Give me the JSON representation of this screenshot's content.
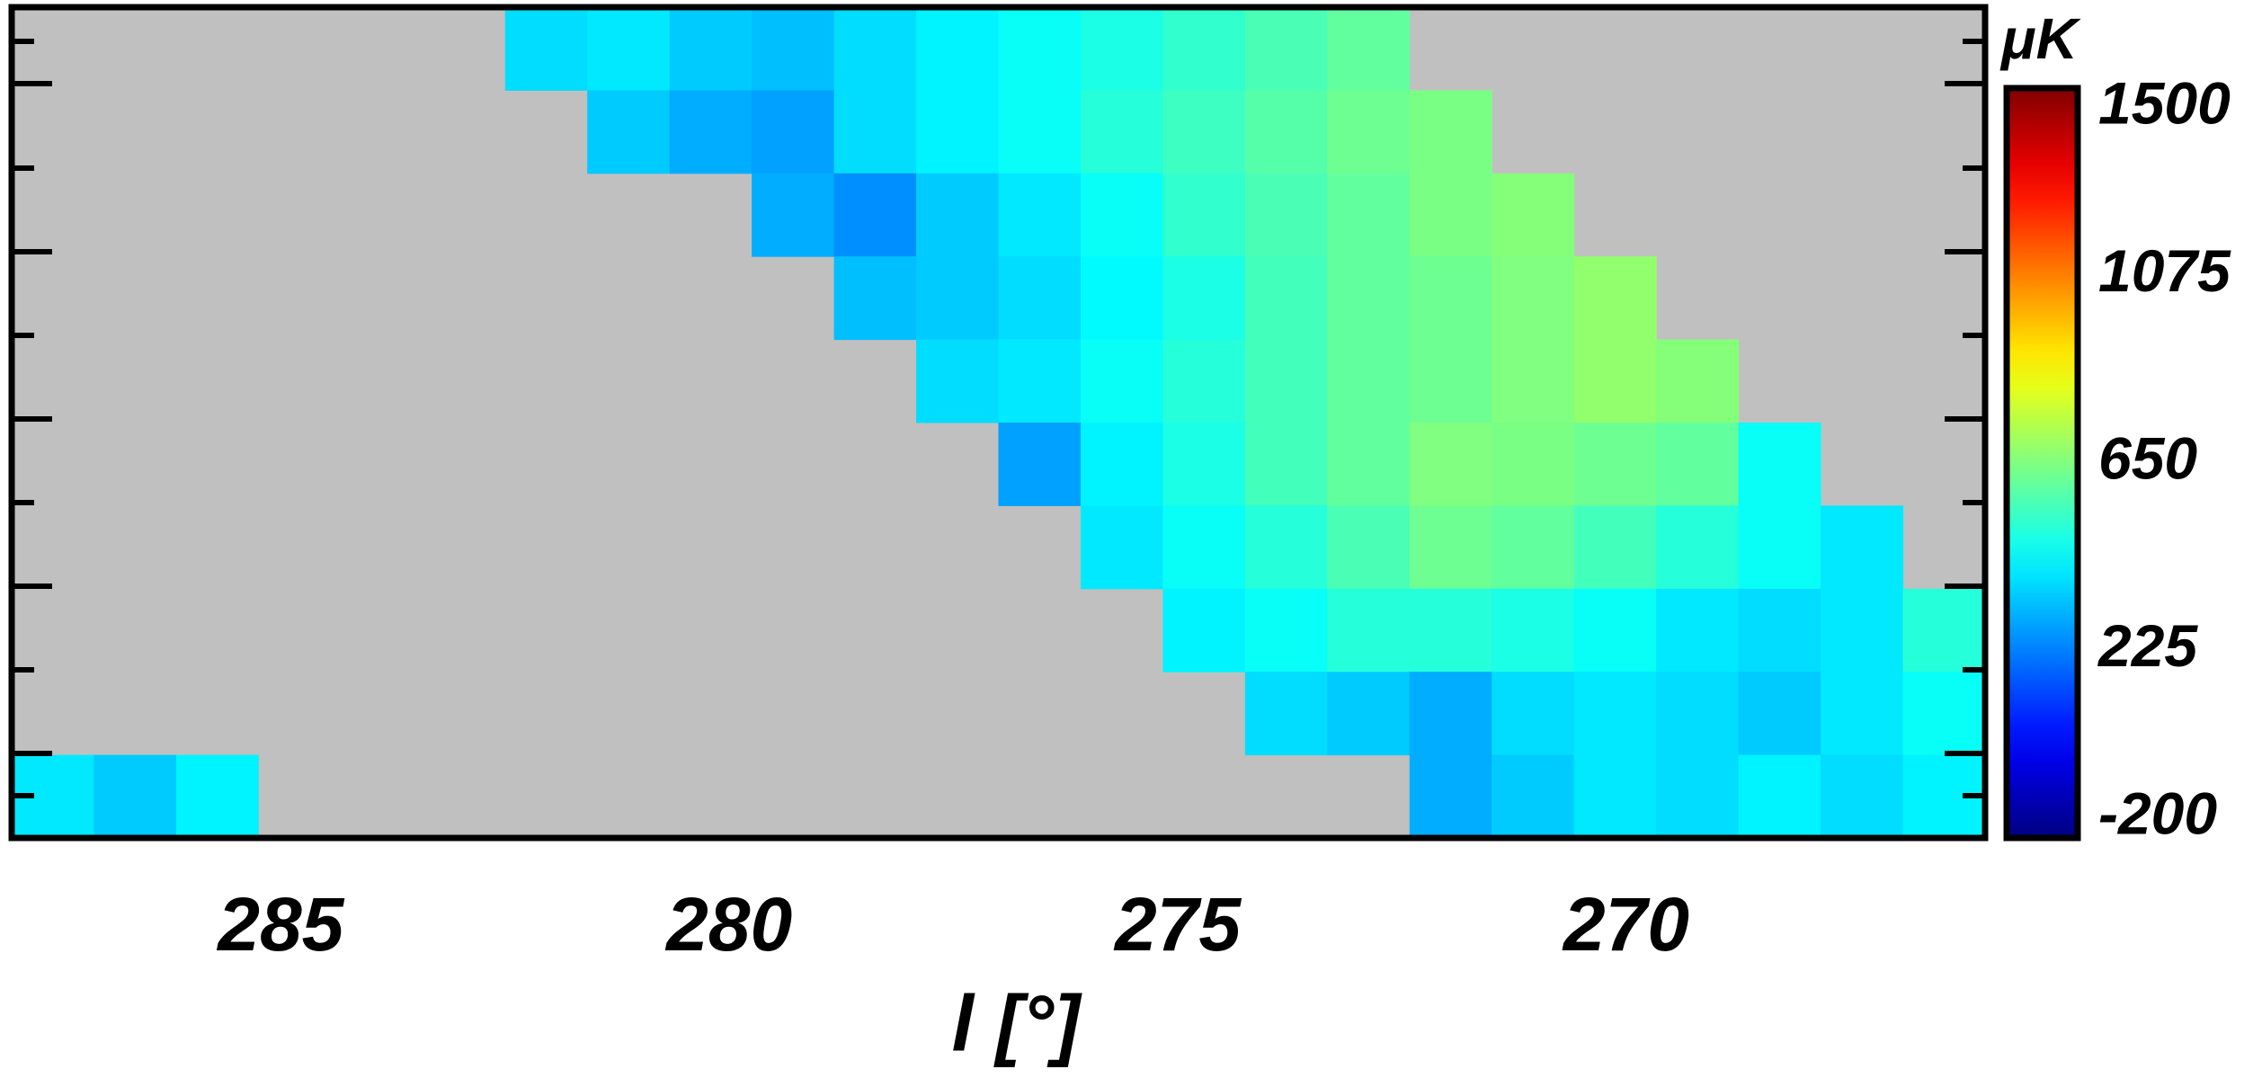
{
  "chart_data": {
    "type": "heatmap",
    "xlabel": "l [°]",
    "xlim": [
      288,
      266
    ],
    "xticks": [
      285,
      280,
      275,
      270
    ],
    "colormap": "jet",
    "mask_color": "#c0c0c0",
    "z": [
      [
        null,
        null,
        null,
        null,
        null,
        null,
        380,
        400,
        350,
        330,
        380,
        420,
        450,
        480,
        520,
        560,
        600,
        null,
        null,
        null,
        null,
        null,
        null,
        null
      ],
      [
        null,
        null,
        null,
        null,
        null,
        null,
        null,
        350,
        300,
        280,
        380,
        420,
        450,
        500,
        540,
        580,
        620,
        640,
        null,
        null,
        null,
        null,
        null,
        null
      ],
      [
        null,
        null,
        null,
        null,
        null,
        null,
        null,
        null,
        null,
        300,
        250,
        350,
        400,
        450,
        520,
        560,
        600,
        640,
        660,
        null,
        null,
        null,
        null,
        null
      ],
      [
        null,
        null,
        null,
        null,
        null,
        null,
        null,
        null,
        null,
        null,
        330,
        350,
        380,
        430,
        480,
        550,
        600,
        620,
        650,
        680,
        null,
        null,
        null,
        null
      ],
      [
        null,
        null,
        null,
        null,
        null,
        null,
        null,
        null,
        null,
        null,
        null,
        380,
        400,
        450,
        500,
        550,
        600,
        620,
        650,
        680,
        660,
        null,
        null,
        null
      ],
      [
        null,
        null,
        null,
        null,
        null,
        null,
        null,
        null,
        null,
        null,
        null,
        null,
        280,
        420,
        480,
        550,
        600,
        650,
        640,
        620,
        600,
        450,
        null,
        null
      ],
      [
        null,
        null,
        null,
        null,
        null,
        null,
        null,
        null,
        null,
        null,
        null,
        null,
        null,
        400,
        450,
        500,
        560,
        620,
        600,
        550,
        500,
        450,
        400,
        null
      ],
      [
        null,
        null,
        null,
        null,
        null,
        null,
        null,
        null,
        null,
        null,
        null,
        null,
        null,
        null,
        420,
        450,
        500,
        500,
        480,
        450,
        400,
        380,
        400,
        500
      ],
      [
        null,
        null,
        null,
        null,
        null,
        null,
        null,
        null,
        null,
        null,
        null,
        null,
        null,
        null,
        null,
        380,
        350,
        300,
        380,
        400,
        380,
        350,
        400,
        450
      ],
      [
        400,
        350,
        420,
        null,
        null,
        null,
        null,
        null,
        null,
        null,
        null,
        null,
        null,
        null,
        null,
        null,
        null,
        300,
        350,
        400,
        380,
        420,
        380,
        420
      ]
    ],
    "colorbar": {
      "label": "μK",
      "clim": [
        -200,
        1500
      ],
      "ticks": [
        -200,
        225,
        650,
        1075,
        1500
      ]
    }
  }
}
